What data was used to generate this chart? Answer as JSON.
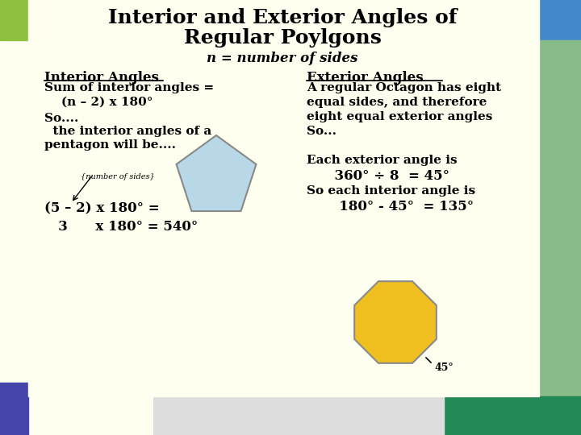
{
  "title_line1": "Interior and Exterior Angles of",
  "title_line2": "Regular Poylgons",
  "subtitle": "n = number of sides",
  "left_heading": "Interior Angles",
  "left_text1": "Sum of interior angles =",
  "left_text2": "    (n – 2) x 180°",
  "left_text3": "So....",
  "left_text4": "  the interior angles of a",
  "left_text5": "pentagon will be....",
  "left_annotation": "{number of sides}",
  "left_formula1": "(5 – 2) x 180° =",
  "left_formula2": "   3      x 180° = 540°",
  "right_heading": "Exterior Angles",
  "right_text1": "A regular Octagon has eight",
  "right_text2": "equal sides, and therefore",
  "right_text3": "eight equal exterior angles",
  "right_text4": "So...",
  "right_text5": "Each exterior angle is",
  "right_text6": "      360° ÷ 8  = 45°",
  "right_text7": "So each interior angle is",
  "right_text8": "       180° - 45°  = 135°",
  "angle_label": "45°",
  "bg_main": "#fffff0",
  "bg_topleft": "#90c040",
  "bg_topright1": "#4488cc",
  "bg_topright2": "#88bb88",
  "bg_bottomleft": "#4444aa",
  "bg_bottomright": "#228855",
  "bg_bottomright2": "#dddddd",
  "pentagon_fill": "#b8d8e8",
  "pentagon_edge": "#888888",
  "octagon_fill": "#f0c020",
  "octagon_edge": "#888888"
}
